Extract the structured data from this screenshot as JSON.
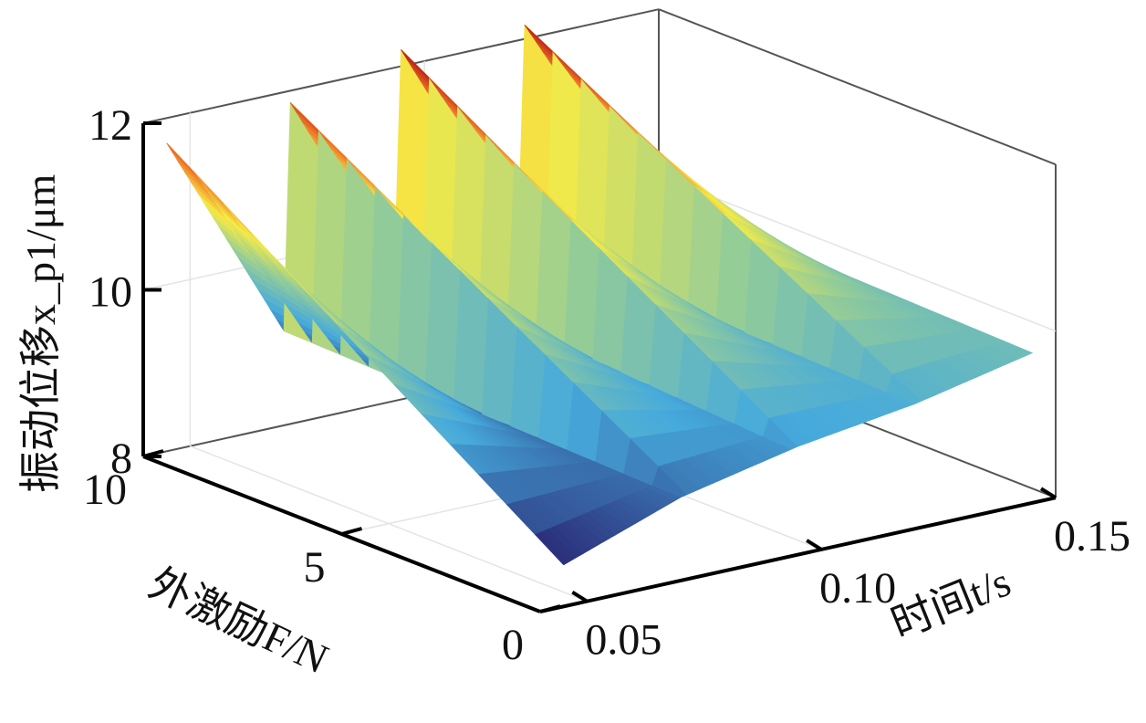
{
  "chart_data": {
    "type": "surface3d",
    "title": "",
    "xlabel": "时间t/s",
    "ylabel": "外激励F/N",
    "zlabel": "振动位移x_p1/μm",
    "xlim": [
      0.04,
      0.15
    ],
    "ylim": [
      0,
      10
    ],
    "zlim": [
      8,
      12
    ],
    "x_ticks": [
      "0.05",
      "0.10",
      "0.15"
    ],
    "y_ticks": [
      "0",
      "5",
      "10"
    ],
    "z_ticks": [
      "8",
      "10",
      "12"
    ],
    "colormap": "jet",
    "grid": true,
    "box": true,
    "description_values": {
      "period_s": 0.025,
      "peaks": [
        {
          "t": 0.045,
          "F": 10,
          "z": 11.7
        },
        {
          "t": 0.07,
          "F": 10,
          "z": 12.0
        },
        {
          "t": 0.095,
          "F": 10,
          "z": 12.2
        },
        {
          "t": 0.12,
          "F": 10,
          "z": 12.3
        }
      ],
      "troughs_at_F0": [
        {
          "t": 0.045,
          "z": 8.5
        },
        {
          "t": 0.07,
          "z": 9.0
        },
        {
          "t": 0.095,
          "z": 9.3
        },
        {
          "t": 0.12,
          "z": 9.5
        },
        {
          "t": 0.145,
          "z": 9.8
        }
      ]
    }
  }
}
